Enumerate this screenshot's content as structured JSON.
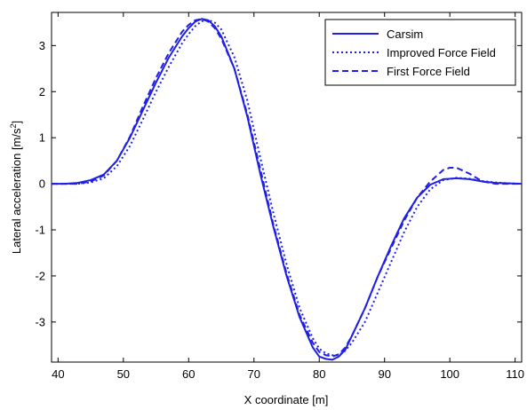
{
  "chart_data": {
    "type": "line",
    "title": "",
    "xlabel": "X coordinate [m]",
    "ylabel_main": "Lateral acceleration [m/s",
    "ylabel_sup": "2",
    "ylabel_tail": "]",
    "xlim": [
      39,
      111
    ],
    "ylim": [
      -3.87,
      3.72
    ],
    "xticks": [
      40,
      50,
      60,
      70,
      80,
      90,
      100,
      110
    ],
    "yticks": [
      -3,
      -2,
      -1,
      0,
      1,
      2,
      3
    ],
    "grid": false,
    "legend_position": "top-right",
    "line_color": "#1f1fe6",
    "series": [
      {
        "name": "Carsim",
        "style": "solid",
        "x": [
          39,
          41,
          43,
          45,
          47,
          49,
          51,
          53,
          55,
          57,
          59,
          60,
          61,
          62,
          63,
          64,
          65,
          67,
          69,
          71,
          73,
          75,
          77,
          79,
          80,
          81,
          82,
          83,
          84,
          85,
          87,
          89,
          91,
          93,
          95,
          97,
          99,
          101,
          103,
          105,
          107,
          109,
          111
        ],
        "y": [
          0.0,
          0.0,
          0.02,
          0.08,
          0.2,
          0.5,
          1.0,
          1.6,
          2.2,
          2.75,
          3.2,
          3.38,
          3.52,
          3.58,
          3.55,
          3.42,
          3.2,
          2.5,
          1.45,
          0.2,
          -0.95,
          -2.0,
          -2.9,
          -3.55,
          -3.75,
          -3.8,
          -3.82,
          -3.75,
          -3.6,
          -3.3,
          -2.7,
          -2.0,
          -1.35,
          -0.75,
          -0.3,
          -0.02,
          0.1,
          0.12,
          0.1,
          0.05,
          0.02,
          0.01,
          0.0
        ]
      },
      {
        "name": "Improved Force Field",
        "style": "dotted",
        "x": [
          39,
          41,
          43,
          45,
          47,
          49,
          51,
          53,
          55,
          57,
          59,
          60,
          61,
          62,
          63,
          64,
          65,
          67,
          69,
          71,
          73,
          75,
          77,
          79,
          80,
          81,
          82,
          83,
          84,
          85,
          87,
          89,
          91,
          93,
          95,
          97,
          99,
          101,
          103,
          105,
          107,
          109,
          111
        ],
        "y": [
          0.0,
          0.0,
          0.0,
          0.03,
          0.12,
          0.38,
          0.82,
          1.4,
          2.0,
          2.55,
          3.05,
          3.25,
          3.42,
          3.53,
          3.56,
          3.5,
          3.35,
          2.75,
          1.8,
          0.55,
          -0.65,
          -1.75,
          -2.7,
          -3.35,
          -3.58,
          -3.68,
          -3.72,
          -3.72,
          -3.62,
          -3.45,
          -3.0,
          -2.35,
          -1.7,
          -1.05,
          -0.5,
          -0.12,
          0.08,
          0.13,
          0.11,
          0.06,
          0.03,
          0.01,
          0.0
        ]
      },
      {
        "name": "First Force Field",
        "style": "dashed",
        "x": [
          39,
          41,
          43,
          45,
          47,
          49,
          51,
          53,
          55,
          57,
          59,
          60,
          61,
          62,
          63,
          64,
          65,
          67,
          69,
          71,
          73,
          75,
          77,
          79,
          80,
          81,
          82,
          83,
          84,
          85,
          87,
          89,
          91,
          93,
          95,
          97,
          99,
          100,
          101,
          103,
          105,
          107,
          109,
          111
        ],
        "y": [
          0.0,
          0.0,
          0.0,
          0.05,
          0.18,
          0.5,
          1.02,
          1.68,
          2.3,
          2.85,
          3.3,
          3.45,
          3.55,
          3.58,
          3.52,
          3.38,
          3.15,
          2.5,
          1.5,
          0.3,
          -0.9,
          -1.95,
          -2.85,
          -3.45,
          -3.65,
          -3.72,
          -3.75,
          -3.7,
          -3.55,
          -3.3,
          -2.7,
          -2.0,
          -1.4,
          -0.8,
          -0.3,
          0.05,
          0.3,
          0.35,
          0.35,
          0.22,
          0.05,
          0.0,
          0.0,
          0.0
        ]
      }
    ]
  }
}
